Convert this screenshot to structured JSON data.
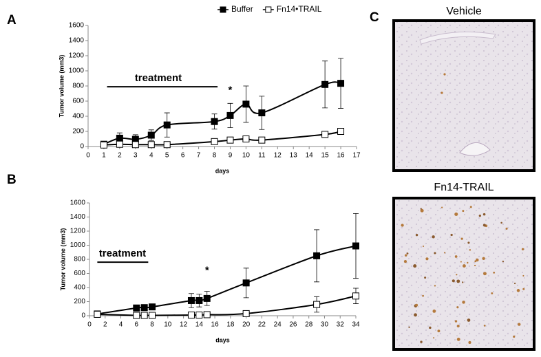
{
  "panel_labels": [
    "A",
    "B",
    "C"
  ],
  "images": [
    {
      "title": "Vehicle"
    },
    {
      "title": "Fn14-TRAIL"
    }
  ],
  "chart_data": [
    {
      "type": "line",
      "x_label": "days",
      "y_label": "Tumor volume (mm3)",
      "annotations": [
        "treatment",
        "*"
      ],
      "xlim": [
        0,
        17
      ],
      "xticks": [
        0,
        1,
        2,
        3,
        4,
        5,
        6,
        7,
        8,
        9,
        10,
        11,
        12,
        13,
        14,
        15,
        16,
        17
      ],
      "ylim": [
        0,
        1600
      ],
      "yticks": [
        0,
        200,
        400,
        600,
        800,
        1000,
        1200,
        1400,
        1600
      ],
      "series": [
        {
          "name": "Buffer",
          "color": "#000000",
          "marker_fill": "#000000",
          "x": [
            1,
            2,
            3,
            4,
            5,
            8,
            9,
            10,
            11,
            15,
            16
          ],
          "values": [
            30,
            110,
            95,
            150,
            285,
            330,
            410,
            560,
            445,
            820,
            835
          ],
          "errors": [
            20,
            70,
            60,
            70,
            160,
            100,
            160,
            240,
            220,
            310,
            330
          ]
        },
        {
          "name": "Fn14•TRAIL",
          "color": "#000000",
          "marker_fill": "#ffffff",
          "x": [
            1,
            2,
            3,
            4,
            5,
            8,
            9,
            10,
            11,
            15,
            16
          ],
          "values": [
            20,
            30,
            25,
            25,
            25,
            65,
            85,
            100,
            85,
            160,
            200
          ],
          "errors": [
            20,
            20,
            15,
            20,
            15,
            20,
            20,
            20,
            20,
            30,
            30
          ]
        }
      ]
    },
    {
      "type": "line",
      "x_label": "days",
      "y_label": "Tumor volume (mm3)",
      "annotations": [
        "treatment",
        "*"
      ],
      "xlim": [
        0,
        34
      ],
      "xticks": [
        0,
        2,
        4,
        6,
        8,
        10,
        12,
        14,
        16,
        18,
        20,
        22,
        24,
        26,
        28,
        30,
        32,
        34
      ],
      "ylim": [
        0,
        1600
      ],
      "yticks": [
        0,
        200,
        400,
        600,
        800,
        1000,
        1200,
        1400,
        1600
      ],
      "series": [
        {
          "color": "#000000",
          "marker_fill": "#000000",
          "x": [
            1,
            6,
            7,
            8,
            13,
            14,
            15,
            20,
            29,
            34
          ],
          "values": [
            25,
            110,
            115,
            125,
            215,
            215,
            245,
            465,
            850,
            990
          ],
          "errors": [
            20,
            30,
            30,
            30,
            100,
            90,
            100,
            210,
            370,
            460
          ]
        },
        {
          "color": "#000000",
          "marker_fill": "#ffffff",
          "x": [
            1,
            6,
            7,
            8,
            13,
            14,
            15,
            20,
            29,
            34
          ],
          "values": [
            20,
            5,
            5,
            5,
            10,
            10,
            15,
            30,
            160,
            280
          ],
          "errors": [
            15,
            10,
            10,
            10,
            20,
            20,
            25,
            30,
            110,
            110
          ]
        }
      ]
    }
  ]
}
